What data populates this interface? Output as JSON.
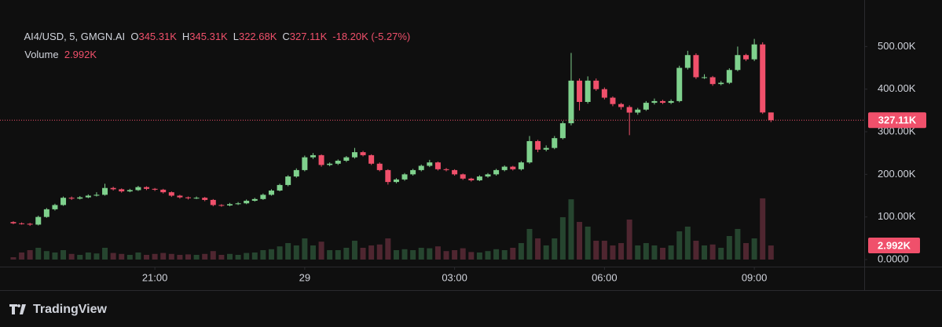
{
  "chart_data": {
    "type": "candlestick",
    "symbol": "AI4/USD, 5, GMGN.AI",
    "ohlc_letters": [
      "O",
      "H",
      "L",
      "C"
    ],
    "last_labels": [
      "345.31K",
      "345.31K",
      "322.68K",
      "327.11K"
    ],
    "change_label": "-18.20K (-5.27%)",
    "volume_title": "Volume",
    "volume_label": "2.992K",
    "brand": "TradingView",
    "up_color": "#7fd18d",
    "down_color": "#f0506b",
    "volume_up_color": "#26452f",
    "volume_down_color": "#4f2630",
    "xlim": [
      -1.6,
      102.2
    ],
    "xticks": [
      {
        "value": 17,
        "label": "21:00"
      },
      {
        "value": 35,
        "label": "29"
      },
      {
        "value": 53,
        "label": "03:00"
      },
      {
        "value": 71,
        "label": "06:00"
      },
      {
        "value": 89,
        "label": "09:00"
      }
    ],
    "ylim": [
      -16600,
      578000
    ],
    "yticks": [
      {
        "value": 0,
        "label": "0.0000"
      },
      {
        "value": 100000,
        "label": "100.00K"
      },
      {
        "value": 200000,
        "label": "200.00K"
      },
      {
        "value": 300000,
        "label": "300.00K"
      },
      {
        "value": 400000,
        "label": "400.00K"
      },
      {
        "value": 500000,
        "label": "500.00K"
      }
    ],
    "volume_ylim": [
      -1500,
      52300
    ],
    "candles": [
      [
        88000,
        90000,
        83000,
        85000
      ],
      [
        85000,
        87000,
        82000,
        84000
      ],
      [
        84000,
        86000,
        79000,
        82000
      ],
      [
        82000,
        103000,
        80000,
        100000
      ],
      [
        100000,
        121000,
        98000,
        118000
      ],
      [
        118000,
        131000,
        115000,
        128000
      ],
      [
        128000,
        148000,
        126000,
        145000
      ],
      [
        145000,
        148000,
        140000,
        143000
      ],
      [
        143000,
        149000,
        141000,
        146000
      ],
      [
        146000,
        153000,
        144000,
        150000
      ],
      [
        150000,
        158000,
        148000,
        152000
      ],
      [
        152000,
        178000,
        150000,
        168000
      ],
      [
        168000,
        171000,
        162000,
        165000
      ],
      [
        165000,
        167000,
        157000,
        160000
      ],
      [
        160000,
        166000,
        158000,
        163000
      ],
      [
        163000,
        173000,
        161000,
        170000
      ],
      [
        170000,
        172000,
        163000,
        166000
      ],
      [
        166000,
        168000,
        161000,
        164000
      ],
      [
        164000,
        166000,
        155000,
        158000
      ],
      [
        158000,
        160000,
        147000,
        150000
      ],
      [
        150000,
        152000,
        143000,
        146000
      ],
      [
        146000,
        148000,
        141000,
        144000
      ],
      [
        144000,
        148000,
        142000,
        145000
      ],
      [
        145000,
        147000,
        137000,
        140000
      ],
      [
        140000,
        142000,
        125000,
        128000
      ],
      [
        128000,
        130000,
        124000,
        127000
      ],
      [
        127000,
        133000,
        125000,
        130000
      ],
      [
        130000,
        135000,
        128000,
        132000
      ],
      [
        132000,
        141000,
        130000,
        138000
      ],
      [
        138000,
        145000,
        136000,
        142000
      ],
      [
        142000,
        155000,
        140000,
        152000
      ],
      [
        152000,
        165000,
        150000,
        162000
      ],
      [
        162000,
        178000,
        160000,
        175000
      ],
      [
        175000,
        198000,
        172000,
        195000
      ],
      [
        195000,
        214000,
        192000,
        210000
      ],
      [
        210000,
        244000,
        207000,
        240000
      ],
      [
        240000,
        250000,
        236000,
        245000
      ],
      [
        245000,
        247000,
        218000,
        222000
      ],
      [
        222000,
        228000,
        219000,
        225000
      ],
      [
        225000,
        235000,
        222000,
        232000
      ],
      [
        232000,
        243000,
        229000,
        240000
      ],
      [
        240000,
        262000,
        237000,
        252000
      ],
      [
        252000,
        255000,
        242000,
        245000
      ],
      [
        245000,
        247000,
        222000,
        225000
      ],
      [
        225000,
        228000,
        207000,
        210000
      ],
      [
        210000,
        212000,
        176000,
        182000
      ],
      [
        182000,
        191000,
        179000,
        188000
      ],
      [
        188000,
        203000,
        185000,
        200000
      ],
      [
        200000,
        213000,
        197000,
        210000
      ],
      [
        210000,
        223000,
        207000,
        220000
      ],
      [
        220000,
        234000,
        217000,
        228000
      ],
      [
        228000,
        230000,
        209000,
        212000
      ],
      [
        212000,
        215000,
        207000,
        210000
      ],
      [
        210000,
        212000,
        197000,
        200000
      ],
      [
        200000,
        202000,
        187000,
        190000
      ],
      [
        190000,
        192000,
        183000,
        186000
      ],
      [
        186000,
        198000,
        184000,
        195000
      ],
      [
        195000,
        203000,
        192000,
        200000
      ],
      [
        200000,
        213000,
        197000,
        210000
      ],
      [
        210000,
        221000,
        207000,
        218000
      ],
      [
        218000,
        220000,
        209000,
        212000
      ],
      [
        212000,
        231000,
        209000,
        228000
      ],
      [
        228000,
        290000,
        225000,
        278000
      ],
      [
        278000,
        281000,
        252000,
        258000
      ],
      [
        258000,
        268000,
        254000,
        262000
      ],
      [
        262000,
        290000,
        259000,
        285000
      ],
      [
        285000,
        325000,
        282000,
        320000
      ],
      [
        320000,
        485000,
        315000,
        420000
      ],
      [
        420000,
        425000,
        350000,
        370000
      ],
      [
        370000,
        430000,
        366000,
        420000
      ],
      [
        420000,
        425000,
        396000,
        400000
      ],
      [
        400000,
        404000,
        376000,
        380000
      ],
      [
        380000,
        383000,
        360000,
        365000
      ],
      [
        365000,
        368000,
        352000,
        358000
      ],
      [
        358000,
        362000,
        292000,
        345000
      ],
      [
        345000,
        356000,
        340000,
        352000
      ],
      [
        352000,
        372000,
        349000,
        368000
      ],
      [
        368000,
        378000,
        364000,
        372000
      ],
      [
        372000,
        375000,
        365000,
        368000
      ],
      [
        368000,
        376000,
        365000,
        372000
      ],
      [
        372000,
        455000,
        369000,
        450000
      ],
      [
        450000,
        490000,
        446000,
        480000
      ],
      [
        480000,
        484000,
        424000,
        428000
      ],
      [
        428000,
        435000,
        424000,
        428000
      ],
      [
        428000,
        431000,
        408000,
        412000
      ],
      [
        412000,
        419000,
        409000,
        415000
      ],
      [
        415000,
        449000,
        412000,
        445000
      ],
      [
        445000,
        500000,
        442000,
        480000
      ],
      [
        480000,
        483000,
        466000,
        470000
      ],
      [
        470000,
        518000,
        466000,
        505000
      ],
      [
        505000,
        510000,
        342000,
        345310
      ],
      [
        345310,
        345310,
        322680,
        327110
      ]
    ],
    "volumes": [
      500,
      1500,
      2000,
      2500,
      1800,
      1500,
      2000,
      1200,
      1000,
      1500,
      1300,
      2500,
      1400,
      1200,
      1000,
      1500,
      1000,
      1200,
      1400,
      1200,
      1000,
      1100,
      1000,
      1200,
      1800,
      1000,
      1200,
      1000,
      1400,
      1500,
      2000,
      2200,
      2800,
      3500,
      3000,
      4500,
      3000,
      3800,
      2000,
      2000,
      2500,
      4000,
      2500,
      3000,
      3200,
      4500,
      2000,
      2200,
      2000,
      2500,
      2400,
      2800,
      1800,
      2000,
      2400,
      1600,
      1500,
      1800,
      2200,
      2000,
      2500,
      3500,
      6500,
      4500,
      3000,
      4500,
      9000,
      12800,
      8000,
      7000,
      4000,
      4000,
      3000,
      3500,
      8500,
      3000,
      3500,
      3000,
      2500,
      3000,
      6000,
      7000,
      4000,
      3000,
      3200,
      2500,
      5000,
      6500,
      3500,
      4500,
      13000,
      2992
    ]
  }
}
